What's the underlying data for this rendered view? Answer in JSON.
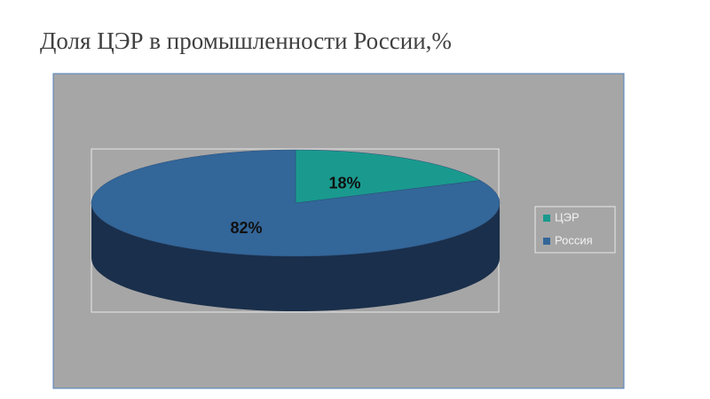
{
  "chart_data": {
    "type": "pie3d",
    "title": "Доля ЦЭР в промышленности России,%",
    "categories": [
      "ЦЭР",
      "Россия"
    ],
    "values": [
      18,
      82
    ],
    "value_labels": [
      "18%",
      "82%"
    ],
    "colors": [
      "#1a9a8e",
      "#336699"
    ],
    "side_colors": [
      "#0f5a53",
      "#1a2f4b"
    ],
    "legend": "right"
  }
}
